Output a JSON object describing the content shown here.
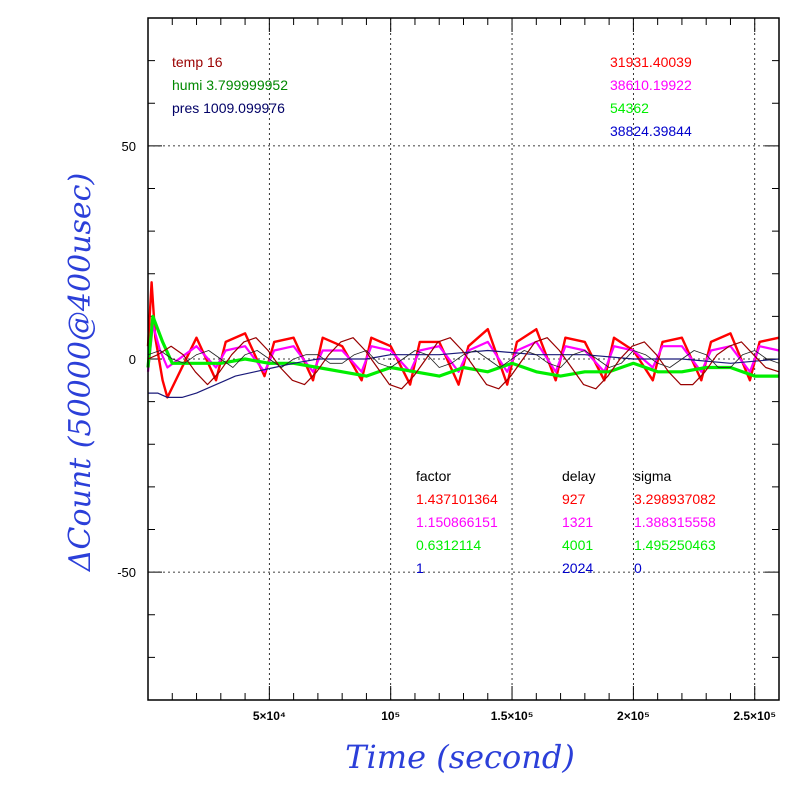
{
  "chart_data": {
    "type": "line",
    "xlabel": "Time (second)",
    "ylabel": "ΔCount (50000@400usec)",
    "xlim": [
      0,
      260000
    ],
    "ylim": [
      -80,
      80
    ],
    "x_ticks": [
      {
        "value": 50000,
        "label": "5×10⁴"
      },
      {
        "value": 100000,
        "label": "10⁵"
      },
      {
        "value": 150000,
        "label": "1.5×10⁵"
      },
      {
        "value": 200000,
        "label": "2×10⁵"
      },
      {
        "value": 250000,
        "label": "2.5×10⁵"
      }
    ],
    "y_ticks": [
      {
        "value": 50,
        "label": "50"
      },
      {
        "value": 0,
        "label": "0"
      },
      {
        "value": -50,
        "label": "-50"
      }
    ],
    "grid": true,
    "left_annotations": [
      {
        "text": "temp 16",
        "color": "#990000"
      },
      {
        "text": "humi 3.799999952",
        "color": "#008800"
      },
      {
        "text": "pres 1009.099976",
        "color": "#000066"
      }
    ],
    "right_annotations": [
      {
        "text": "31931.40039",
        "color": "#ff0000"
      },
      {
        "text": "38610.19922",
        "color": "#ff00ff"
      },
      {
        "text": "54362",
        "color": "#00ee00"
      },
      {
        "text": "38824.39844",
        "color": "#0000cc"
      }
    ],
    "table": {
      "headers": [
        "factor",
        "delay",
        "sigma"
      ],
      "rows": [
        {
          "factor": "1.437101364",
          "delay": "927",
          "sigma": "3.298937082",
          "color": "#ff0000"
        },
        {
          "factor": "1.150866151",
          "delay": "1321",
          "sigma": "1.388315558",
          "color": "#ff00ff"
        },
        {
          "factor": "0.6312114",
          "delay": "4001",
          "sigma": "1.495250463",
          "color": "#00ee00"
        },
        {
          "factor": "1",
          "delay": "2024",
          "sigma": "0",
          "color": "#0000cc"
        }
      ]
    },
    "series": [
      {
        "color": "#ff0000",
        "x": [
          0,
          1500,
          3000,
          6000,
          8000,
          20000,
          28000,
          32000,
          40000,
          48000,
          52000,
          60000,
          68000,
          72000,
          80000,
          88000,
          92000,
          100000,
          108000,
          112000,
          120000,
          128000,
          132000,
          140000,
          148000,
          152000,
          160000,
          168000,
          172000,
          180000,
          188000,
          192000,
          200000,
          208000,
          212000,
          220000,
          228000,
          232000,
          240000,
          248000,
          252000,
          260000
        ],
        "values": [
          3,
          18,
          5,
          -5,
          -9,
          5,
          -5,
          4,
          6,
          -4,
          4,
          5,
          -5,
          5,
          3,
          -5,
          5,
          3,
          -6,
          4,
          4,
          -6,
          3,
          7,
          -6,
          4,
          7,
          -5,
          5,
          4,
          -5,
          5,
          2,
          -5,
          4,
          5,
          -5,
          4,
          6,
          -5,
          4,
          5
        ]
      },
      {
        "color": "#ff00ff",
        "x": [
          0,
          2000,
          5000,
          8000,
          20000,
          28000,
          32000,
          40000,
          48000,
          52000,
          60000,
          68000,
          72000,
          80000,
          88000,
          92000,
          100000,
          108000,
          112000,
          120000,
          128000,
          132000,
          140000,
          148000,
          152000,
          160000,
          168000,
          172000,
          180000,
          188000,
          192000,
          200000,
          208000,
          212000,
          220000,
          228000,
          232000,
          240000,
          248000,
          252000,
          260000
        ],
        "values": [
          -3,
          8,
          2,
          -2,
          3,
          -2,
          2,
          3,
          -3,
          2,
          3,
          -3,
          2,
          2,
          -3,
          3,
          2,
          -3,
          2,
          3,
          -3,
          2,
          4,
          -3,
          2,
          4,
          -3,
          3,
          2,
          -3,
          3,
          2,
          -2,
          3,
          3,
          -3,
          2,
          3,
          -3,
          3,
          2
        ]
      },
      {
        "color": "#00ee00",
        "x": [
          0,
          2000,
          6000,
          10000,
          20000,
          30000,
          40000,
          50000,
          60000,
          70000,
          80000,
          90000,
          100000,
          110000,
          120000,
          130000,
          140000,
          150000,
          160000,
          170000,
          180000,
          190000,
          200000,
          210000,
          220000,
          230000,
          240000,
          250000,
          260000
        ],
        "values": [
          -2,
          10,
          4,
          -1,
          -1,
          -1,
          0,
          -1,
          -1,
          -2,
          -3,
          -4,
          -2,
          -3,
          -4,
          -2,
          -3,
          -1,
          -3,
          -4,
          -3,
          -3,
          -1,
          -3,
          -3,
          -2,
          -2,
          -4,
          -4
        ]
      },
      {
        "color": "#1a1a7a",
        "x": [
          0,
          4000,
          8000,
          14000,
          20000,
          28000,
          36000,
          44000,
          52000,
          60000,
          70000,
          80000,
          90000,
          100000,
          120000,
          140000,
          160000,
          180000,
          200000,
          220000,
          240000,
          260000
        ],
        "values": [
          -8,
          -8,
          -9,
          -9,
          -8,
          -6,
          -4,
          -3,
          -2,
          -1,
          0,
          0,
          0,
          1,
          1,
          2,
          1,
          1,
          0,
          0,
          -1,
          0
        ]
      },
      {
        "color": "#990000",
        "x": [
          0,
          4000,
          9500,
          14500,
          19500,
          24500,
          29500,
          34500,
          39500,
          44500,
          49500,
          54500,
          59500,
          64500,
          69500,
          74500,
          79500,
          84500,
          89500,
          94500,
          99500,
          104500,
          109500,
          114500,
          119500,
          124500,
          129500,
          134500,
          139500,
          144500,
          149500,
          154500,
          159500,
          164500,
          169500,
          174500,
          179500,
          184500,
          189500,
          194500,
          199500,
          204500,
          209500,
          214500,
          219500,
          224500,
          229500,
          234500,
          239500,
          244500,
          249500,
          254500,
          260000
        ],
        "values": [
          0,
          1,
          3,
          1,
          -3,
          -6,
          -3,
          1,
          4,
          5,
          2,
          -2,
          -5,
          -6,
          -3,
          1,
          4,
          5,
          2,
          -2,
          -6,
          -7,
          -4,
          0,
          4,
          5,
          2,
          -2,
          -6,
          -7,
          -4,
          0,
          4,
          5,
          2,
          -2,
          -6,
          -7,
          -4,
          0,
          3,
          4,
          1,
          -3,
          -6,
          -6,
          -3,
          1,
          3,
          4,
          1,
          -2,
          -3
        ]
      },
      {
        "color": "#222222",
        "x": [
          0,
          5000,
          10000,
          15000,
          20000,
          25000,
          30000,
          35000,
          40000,
          45000,
          50000,
          55000,
          60000,
          65000,
          70000,
          75000,
          80000,
          85000,
          90000,
          95000,
          100000,
          105000,
          110000,
          115000,
          120000,
          125000,
          130000,
          135000,
          140000,
          145000,
          150000,
          155000,
          160000,
          165000,
          170000,
          175000,
          180000,
          185000,
          190000,
          195000,
          200000,
          205000,
          210000,
          215000,
          220000,
          225000,
          230000,
          235000,
          240000,
          245000,
          250000,
          255000,
          260000
        ],
        "values": [
          1,
          2,
          0,
          -1,
          1,
          2,
          0,
          -2,
          1,
          2,
          0,
          -2,
          0,
          1,
          1,
          -1,
          -1,
          1,
          2,
          -1,
          -2,
          0,
          2,
          1,
          -2,
          -1,
          1,
          2,
          0,
          -2,
          0,
          2,
          1,
          -1,
          -2,
          1,
          2,
          0,
          -2,
          -1,
          2,
          1,
          -1,
          -2,
          0,
          2,
          1,
          -2,
          -2,
          1,
          2,
          0,
          -1
        ]
      }
    ]
  }
}
